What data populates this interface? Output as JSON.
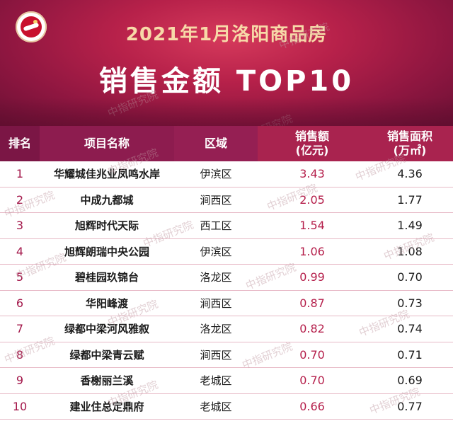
{
  "header": {
    "title_line1": "2021年1月洛阳商品房",
    "title_line2": "销售金额 TOP10"
  },
  "columns": {
    "rank": "排名",
    "name": "项目名称",
    "region": "区域",
    "amount": "销售额",
    "amount_unit": "(亿元)",
    "area": "销售面积",
    "area_unit": "(万㎡)"
  },
  "rows": [
    {
      "rank": "1",
      "name": "华耀城佳兆业凤鸣水岸",
      "region": "伊滨区",
      "amount": "3.43",
      "area": "4.36"
    },
    {
      "rank": "2",
      "name": "中成九都城",
      "region": "涧西区",
      "amount": "2.05",
      "area": "1.77"
    },
    {
      "rank": "3",
      "name": "旭辉时代天际",
      "region": "西工区",
      "amount": "1.54",
      "area": "1.49"
    },
    {
      "rank": "4",
      "name": "旭辉朗瑞中央公园",
      "region": "伊滨区",
      "amount": "1.06",
      "area": "1.08"
    },
    {
      "rank": "5",
      "name": "碧桂园玖锦台",
      "region": "洛龙区",
      "amount": "0.99",
      "area": "0.70"
    },
    {
      "rank": "6",
      "name": "华阳峰渡",
      "region": "涧西区",
      "amount": "0.87",
      "area": "0.73"
    },
    {
      "rank": "7",
      "name": "绿都中梁河风雅叙",
      "region": "洛龙区",
      "amount": "0.82",
      "area": "0.74"
    },
    {
      "rank": "8",
      "name": "绿都中梁青云赋",
      "region": "涧西区",
      "amount": "0.70",
      "area": "0.71"
    },
    {
      "rank": "9",
      "name": "香榭丽兰溪",
      "region": "老城区",
      "amount": "0.70",
      "area": "0.69"
    },
    {
      "rank": "10",
      "name": "建业住总定鼎府",
      "region": "老城区",
      "amount": "0.66",
      "area": "0.77"
    }
  ],
  "watermark": "中指研究院",
  "colors": {
    "banner": "#b7214a",
    "header_dark": "#7b1645",
    "accent": "#b51f4b"
  }
}
